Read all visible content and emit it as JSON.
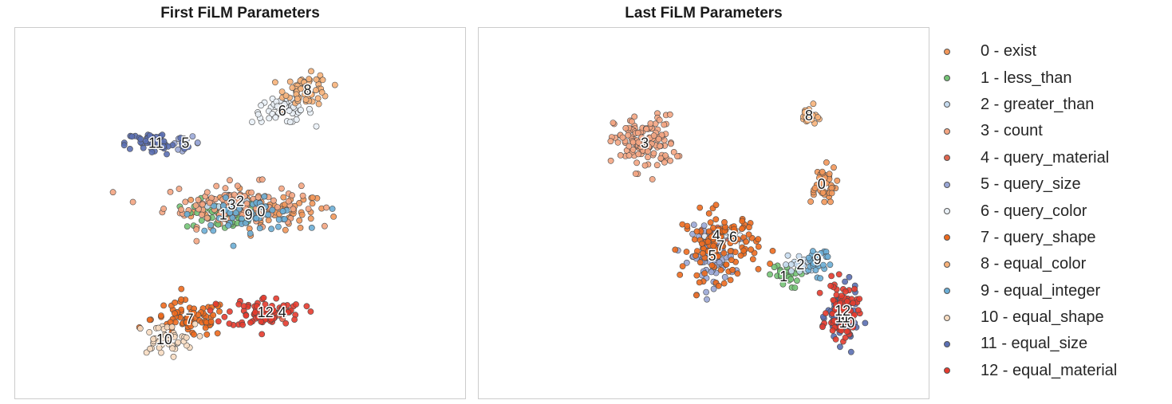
{
  "chart_data": [
    {
      "type": "scatter",
      "title": "First FiLM Parameters",
      "xlabel": "",
      "ylabel": "",
      "grid": false,
      "axes_visible": false,
      "clusters": [
        {
          "label": "0",
          "class": 0,
          "x": 27.5,
          "y": 50.5,
          "spread": [
            9,
            6
          ],
          "count": 90
        },
        {
          "label": "1",
          "class": 1,
          "x": 23,
          "y": 49.5,
          "spread": [
            5,
            5
          ],
          "count": 50
        },
        {
          "label": "2",
          "class": 2,
          "x": 25,
          "y": 53.5,
          "spread": [
            4,
            4
          ],
          "count": 25
        },
        {
          "label": "3",
          "class": 3,
          "x": 24,
          "y": 52.5,
          "spread": [
            9,
            7
          ],
          "count": 110
        },
        {
          "label": "4",
          "class": 4,
          "x": 30,
          "y": 21,
          "spread": [
            2,
            2
          ],
          "count": 10
        },
        {
          "label": "5",
          "class": 5,
          "x": 18.5,
          "y": 70.5,
          "spread": [
            2,
            2
          ],
          "count": 10
        },
        {
          "label": "6",
          "class": 6,
          "x": 30,
          "y": 80,
          "spread": [
            4,
            4
          ],
          "count": 55
        },
        {
          "label": "7",
          "class": 7,
          "x": 19,
          "y": 19,
          "spread": [
            5,
            6
          ],
          "count": 80
        },
        {
          "label": "8",
          "class": 8,
          "x": 33,
          "y": 86,
          "spread": [
            3,
            5
          ],
          "count": 60
        },
        {
          "label": "9",
          "class": 9,
          "x": 26,
          "y": 49.5,
          "spread": [
            7,
            5
          ],
          "count": 55
        },
        {
          "label": "10",
          "class": 10,
          "x": 16,
          "y": 13,
          "spread": [
            4,
            5
          ],
          "count": 45
        },
        {
          "label": "11",
          "class": 11,
          "x": 15,
          "y": 70.5,
          "spread": [
            4,
            4
          ],
          "count": 55
        },
        {
          "label": "12",
          "class": 12,
          "x": 28,
          "y": 21,
          "spread": [
            5,
            5
          ],
          "count": 75
        }
      ]
    },
    {
      "type": "scatter",
      "title": "Last FiLM Parameters",
      "xlabel": "",
      "ylabel": "",
      "grid": false,
      "axes_visible": false,
      "clusters": [
        {
          "label": "0",
          "class": 0,
          "x": 39,
          "y": 58.5,
          "spread": [
            2,
            6
          ],
          "count": 45
        },
        {
          "label": "1",
          "class": 1,
          "x": 34.5,
          "y": 31.5,
          "spread": [
            2,
            4
          ],
          "count": 25
        },
        {
          "label": "2",
          "class": 2,
          "x": 36.5,
          "y": 35,
          "spread": [
            2,
            3
          ],
          "count": 20
        },
        {
          "label": "3",
          "class": 3,
          "x": 18,
          "y": 70.5,
          "spread": [
            4,
            9
          ],
          "count": 130
        },
        {
          "label": "4",
          "class": 4,
          "x": 26.5,
          "y": 43.5,
          "spread": [
            2,
            3
          ],
          "count": 25
        },
        {
          "label": "5",
          "class": 5,
          "x": 26,
          "y": 37.5,
          "spread": [
            3,
            9
          ],
          "count": 90
        },
        {
          "label": "6",
          "class": 6,
          "x": 28.5,
          "y": 43,
          "spread": [
            2,
            3
          ],
          "count": 25
        },
        {
          "label": "7",
          "class": 7,
          "x": 27,
          "y": 40.5,
          "spread": [
            5,
            11
          ],
          "count": 120
        },
        {
          "label": "8",
          "class": 8,
          "x": 37.5,
          "y": 78.5,
          "spread": [
            1,
            3
          ],
          "count": 25
        },
        {
          "label": "9",
          "class": 9,
          "x": 38.5,
          "y": 36.5,
          "spread": [
            2,
            5
          ],
          "count": 30
        },
        {
          "label": "10",
          "class": 10,
          "x": 42,
          "y": 18,
          "spread": [
            1,
            2
          ],
          "count": 12
        },
        {
          "label": "11",
          "class": 11,
          "x": 41.5,
          "y": 19.5,
          "spread": [
            2,
            9
          ],
          "count": 80
        },
        {
          "label": "12",
          "class": 12,
          "x": 41.5,
          "y": 21.5,
          "spread": [
            2,
            9
          ],
          "count": 80
        }
      ]
    }
  ],
  "legend": {
    "placement": "right",
    "items": [
      {
        "label": "0 - exist",
        "color": "#f2975a"
      },
      {
        "label": "1 - less_than",
        "color": "#74c476"
      },
      {
        "label": "2 - greater_than",
        "color": "#c6dbef"
      },
      {
        "label": "3 - count",
        "color": "#f4a582"
      },
      {
        "label": "4 - query_material",
        "color": "#e0664f"
      },
      {
        "label": "5 - query_size",
        "color": "#9aa7d6"
      },
      {
        "label": "6 - query_color",
        "color": "#eaf1f7"
      },
      {
        "label": "7 - query_shape",
        "color": "#ed6a1e"
      },
      {
        "label": "8 - equal_color",
        "color": "#f7b27a"
      },
      {
        "label": "9 - equal_integer",
        "color": "#6baed6"
      },
      {
        "label": "10 - equal_shape",
        "color": "#f7dcc1"
      },
      {
        "label": "11 - equal_size",
        "color": "#5b6fb3"
      },
      {
        "label": "12 - equal_material",
        "color": "#e63b2e"
      }
    ]
  }
}
